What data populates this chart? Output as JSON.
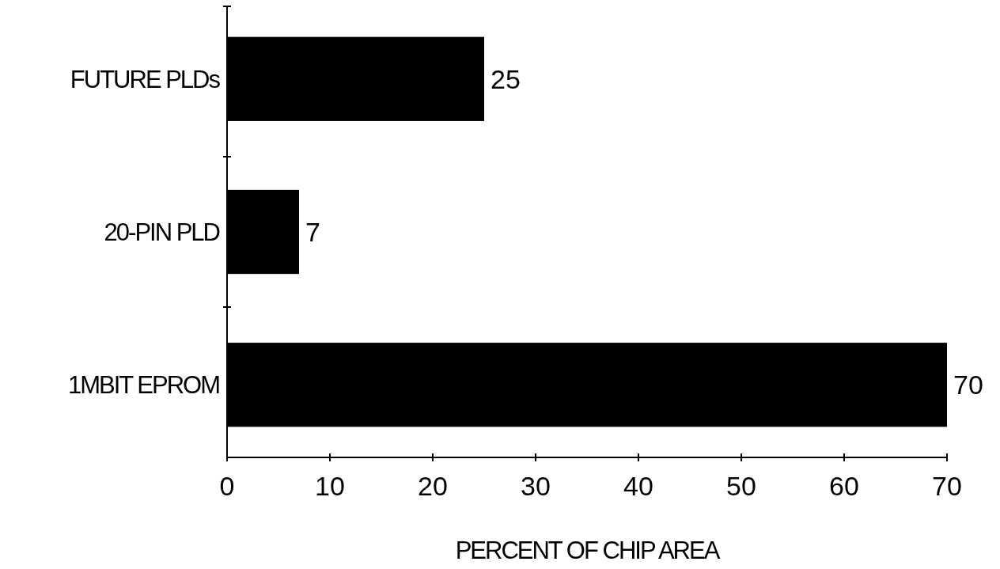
{
  "chart_data": {
    "type": "bar",
    "orientation": "horizontal",
    "xlabel": "PERCENT OF CHIP AREA",
    "categories": [
      "FUTURE PLDs",
      "20-PIN PLD",
      "1MBIT EPROM"
    ],
    "values": [
      25,
      7,
      70
    ],
    "color": "#000000",
    "xlim": [
      0,
      70
    ],
    "xticks": [
      0,
      10,
      20,
      30,
      40,
      50,
      60,
      70
    ],
    "data_labels": true,
    "grid": false
  }
}
